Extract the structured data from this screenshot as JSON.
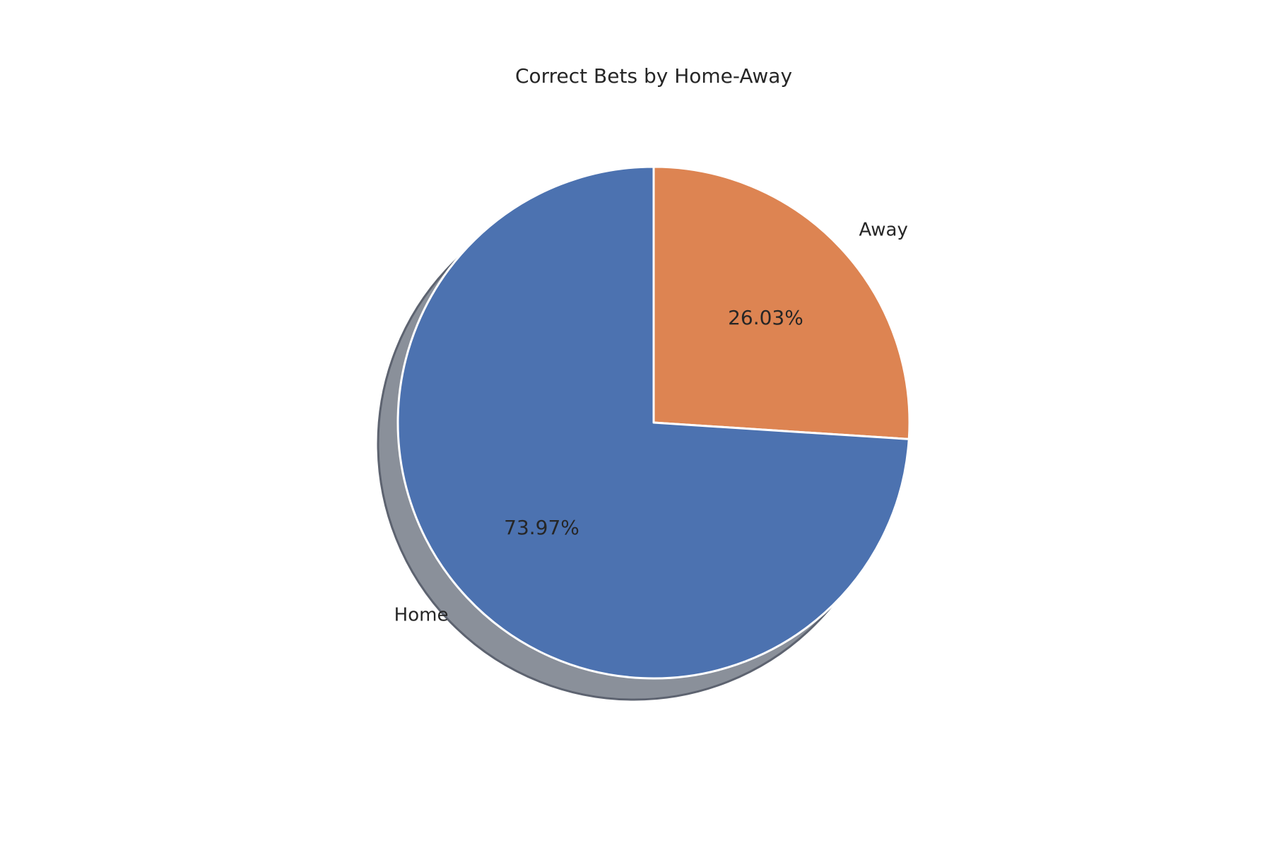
{
  "chart_data": {
    "type": "pie",
    "title": "Correct Bets by Home-Away",
    "slices": [
      {
        "label": "Away",
        "value": 26.03,
        "pct_label": "26.03%",
        "color": "#dd8452"
      },
      {
        "label": "Home",
        "value": 73.97,
        "pct_label": "73.97%",
        "color": "#4c72b0"
      }
    ],
    "start_angle_deg": 90,
    "direction": "clockwise",
    "shadow": true,
    "shadow_color": "#8a909a",
    "edge_color": "#ffffff"
  }
}
